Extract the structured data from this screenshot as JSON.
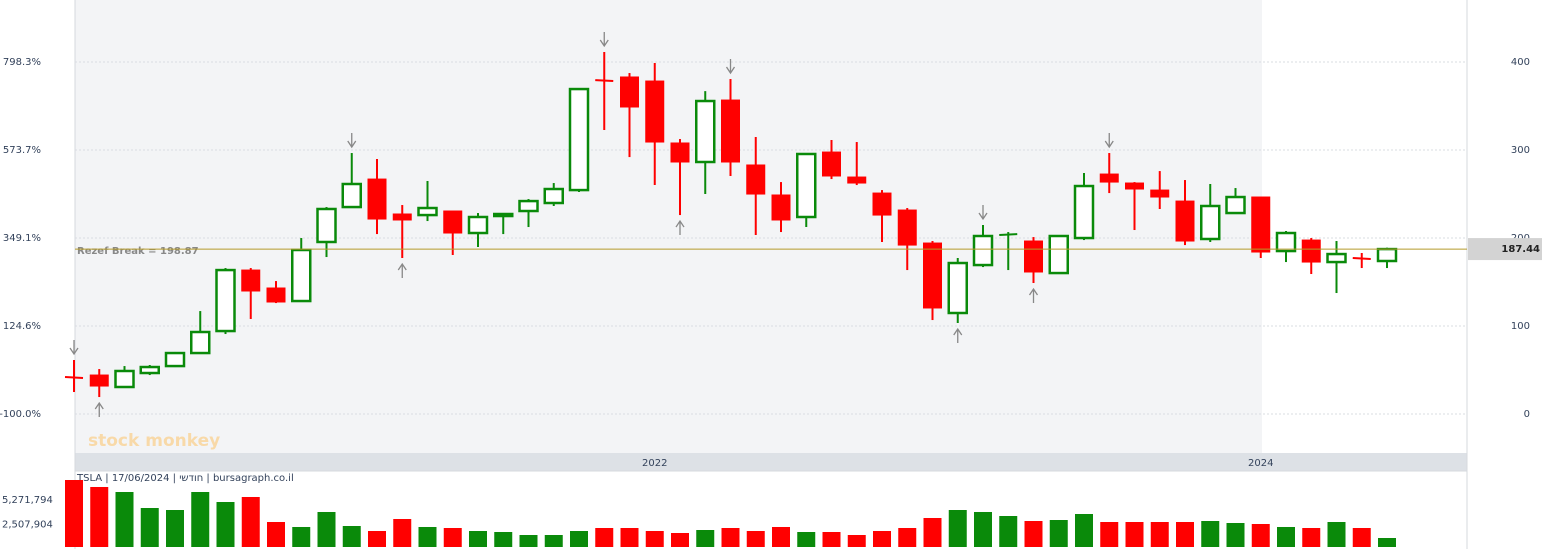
{
  "chart_data": {
    "type": "candlestick",
    "categories": [
      null,
      null,
      null,
      null,
      null,
      null,
      null,
      null,
      null,
      null,
      null,
      null,
      null,
      null,
      null,
      null,
      null,
      null,
      null,
      null,
      null,
      null,
      null,
      "2022",
      null,
      null,
      null,
      null,
      null,
      null,
      null,
      null,
      null,
      null,
      null,
      null,
      null,
      null,
      null,
      null,
      null,
      null,
      null,
      null,
      null,
      null,
      null,
      "2024",
      null,
      null,
      null,
      null,
      null
    ],
    "open": [
      42.0,
      44.3,
      30.7,
      46.6,
      54.5,
      69.3,
      94.3,
      163.6,
      143.2,
      128.4,
      195.5,
      235.2,
      267.0,
      227.3,
      226.1,
      230.7,
      205.7,
      225.0,
      230.7,
      239.8,
      254.5,
      379.5,
      383.0,
      378.4,
      308.0,
      286.4,
      356.8,
      283.0,
      248.9,
      223.9,
      297.7,
      269.3,
      251.1,
      231.8,
      194.3,
      114.8,
      169.3,
      203.4,
      196.6,
      160.2,
      200.0,
      272.7,
      262.5,
      254.5,
      242.0,
      198.9,
      228.4,
      246.6,
      185.2,
      197.7,
      172.7,
      177.3,
      173.9
    ],
    "high": [
      61.4,
      51.1,
      54.5,
      55.7,
      70.5,
      117,
      165.9,
      165.9,
      151.1,
      200,
      235.2,
      296.6,
      289.8,
      237.5,
      264.8,
      230.7,
      228.4,
      228.4,
      244.3,
      262.5,
      369.3,
      411.4,
      387.5,
      398.9,
      312.5,
      367,
      380.7,
      314.8,
      263.6,
      295.5,
      311.4,
      309.1,
      254.5,
      234.1,
      196.6,
      177.3,
      214.8,
      206.8,
      201.1,
      202.3,
      273.9,
      296.6,
      263.6,
      276.1,
      265.9,
      261.4,
      256.8,
      246.6,
      208,
      200,
      196.6,
      183,
      189
    ],
    "low": [
      25,
      19.3,
      30.7,
      44.3,
      53.4,
      69.3,
      90.9,
      108,
      126.1,
      128.4,
      178.4,
      235.2,
      204.5,
      177.3,
      219.3,
      180.7,
      189.8,
      204.5,
      212.5,
      236.4,
      252.3,
      322.7,
      292,
      260.2,
      226.1,
      250,
      270.5,
      203.4,
      206.8,
      212.5,
      267,
      260.2,
      195.5,
      163.6,
      106.8,
      103.4,
      167,
      163.6,
      148.9,
      159.1,
      197.7,
      251.1,
      209.1,
      233,
      192,
      195.5,
      228.4,
      177.3,
      172.7,
      159.1,
      137.5,
      165.9,
      165.9
    ],
    "close": [
      40.9,
      31.8,
      48.9,
      53.4,
      69.3,
      93.2,
      163.6,
      139.8,
      127.3,
      186.4,
      233,
      261.4,
      221.6,
      220.5,
      234.1,
      205.7,
      223.9,
      227.3,
      242,
      255.7,
      369.3,
      378.4,
      348.9,
      309.1,
      286.4,
      355.7,
      286.4,
      250,
      220.5,
      295.5,
      270.5,
      262.5,
      226.1,
      192,
      120.5,
      171.6,
      202.3,
      204.5,
      161.4,
      202.3,
      259.1,
      263.6,
      255.7,
      246.6,
      196.6,
      236.4,
      246.6,
      184.1,
      205.7,
      172.7,
      181.8,
      176.1,
      187.44
    ],
    "volume": [
      7549000,
      6761000,
      6197000,
      4394000,
      4169000,
      6197000,
      5070000,
      5634000,
      2817000,
      2254000,
      3944000,
      2366000,
      1803000,
      3155000,
      2254000,
      2141000,
      1803000,
      1690000,
      1352000,
      1352000,
      1803000,
      2141000,
      2141000,
      1803000,
      1577000,
      1915000,
      2141000,
      1803000,
      2254000,
      1690000,
      1690000,
      1352000,
      1803000,
      2141000,
      3268000,
      4169000,
      3944000,
      3493000,
      2930000,
      3042000,
      3718000,
      2817000,
      2817000,
      2817000,
      2817000,
      2930000,
      2704000,
      2592000,
      2254000,
      2141000,
      2817000,
      2141000,
      1014000
    ],
    "up_color": "#0a8a0a",
    "down_color": "#ff0000",
    "ylim": [
      -44.3,
      470.5
    ],
    "yticks": [
      0,
      100,
      200,
      300,
      400
    ],
    "y2lim": [
      -199.5,
      956.7
    ],
    "y2ticks": [
      {
        "value": -100.0,
        "label": "-100.0%"
      },
      {
        "value": 124.6,
        "label": "124.6%"
      },
      {
        "value": 349.1,
        "label": "349.1%"
      },
      {
        "value": 573.7,
        "label": "573.7%"
      },
      {
        "value": 798.3,
        "label": "798.3%"
      }
    ],
    "volume_lim": [
      0,
      8000000
    ],
    "volume_ticks": [
      {
        "value": 2507904,
        "label": "2,507,904"
      },
      {
        "value": 5271794,
        "label": "5,271,794"
      }
    ],
    "last_price": 187.44,
    "annotation": "Rezef Break = 198.87",
    "fractal_highs": [
      0,
      11,
      21,
      26,
      36,
      41
    ],
    "fractal_lows": [
      1,
      13,
      24,
      35,
      38
    ],
    "info_text": "TSLA | 17/06/2024 | חודשי | bursagraph.co.il",
    "watermark": "stock monkey",
    "grid": true
  }
}
